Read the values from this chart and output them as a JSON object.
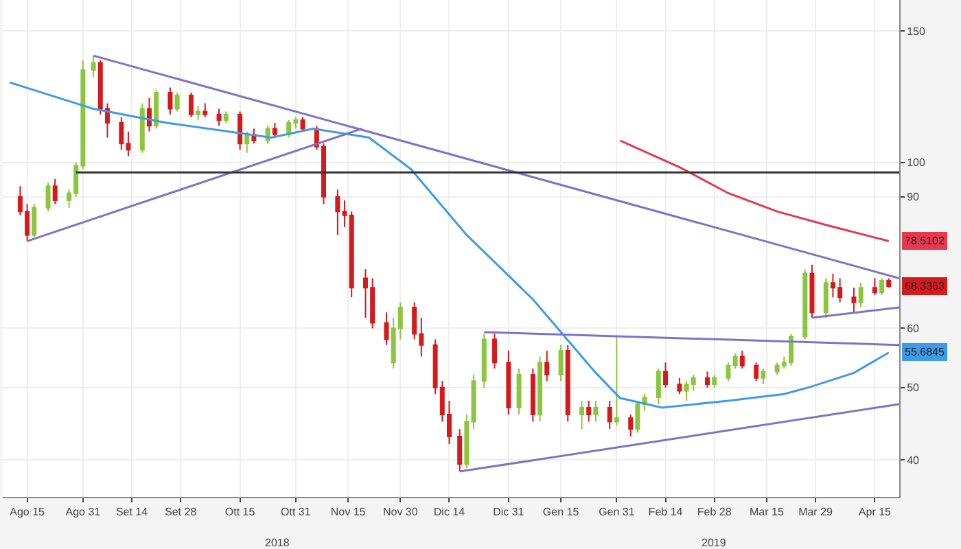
{
  "chart_data": {
    "type": "candlestick",
    "x": [
      "2018-08-13",
      "2018-08-15",
      "2018-08-17",
      "2018-08-21",
      "2018-08-23",
      "2018-08-27",
      "2018-08-29",
      "2018-08-31",
      "2018-09-03",
      "2018-09-05",
      "2018-09-07",
      "2018-09-11",
      "2018-09-13",
      "2018-09-17",
      "2018-09-19",
      "2018-09-21",
      "2018-09-25",
      "2018-09-27",
      "2018-10-01",
      "2018-10-03",
      "2018-10-05",
      "2018-10-09",
      "2018-10-11",
      "2018-10-15",
      "2018-10-17",
      "2018-10-19",
      "2018-10-23",
      "2018-10-25",
      "2018-10-29",
      "2018-10-31",
      "2018-11-02",
      "2018-11-06",
      "2018-11-08",
      "2018-11-12",
      "2018-11-14",
      "2018-11-16",
      "2018-11-20",
      "2018-11-22",
      "2018-11-26",
      "2018-11-28",
      "2018-11-30",
      "2018-12-04",
      "2018-12-06",
      "2018-12-10",
      "2018-12-12",
      "2018-12-14",
      "2018-12-17",
      "2018-12-19",
      "2018-12-21",
      "2018-12-24",
      "2018-12-27",
      "2018-12-31",
      "2019-01-03",
      "2019-01-07",
      "2019-01-09",
      "2019-01-11",
      "2019-01-15",
      "2019-01-17",
      "2019-01-21",
      "2019-01-23",
      "2019-01-25",
      "2019-01-29",
      "2019-01-31",
      "2019-02-04",
      "2019-02-06",
      "2019-02-08",
      "2019-02-12",
      "2019-02-14",
      "2019-02-18",
      "2019-02-20",
      "2019-02-22",
      "2019-02-26",
      "2019-02-28",
      "2019-03-04",
      "2019-03-06",
      "2019-03-08",
      "2019-03-12",
      "2019-03-14",
      "2019-03-18",
      "2019-03-20",
      "2019-03-22",
      "2019-03-26",
      "2019-03-28",
      "2019-04-01",
      "2019-04-03",
      "2019-04-05",
      "2019-04-09",
      "2019-04-11",
      "2019-04-15",
      "2019-04-17",
      "2019-04-19"
    ],
    "ohlc": [
      [
        90,
        93,
        85,
        86
      ],
      [
        86,
        88,
        78.5,
        80
      ],
      [
        80,
        88,
        79.5,
        87
      ],
      [
        87,
        94,
        86,
        93
      ],
      [
        93,
        95,
        88,
        89
      ],
      [
        89,
        92,
        87,
        91
      ],
      [
        91,
        100,
        90,
        99
      ],
      [
        99,
        137,
        98,
        133
      ],
      [
        133,
        139,
        130,
        136
      ],
      [
        136,
        137,
        116,
        118
      ],
      [
        118,
        120,
        108,
        113
      ],
      [
        113,
        115,
        104,
        106
      ],
      [
        106,
        110,
        102,
        104
      ],
      [
        104,
        120,
        103,
        118
      ],
      [
        118,
        122,
        110,
        112
      ],
      [
        112,
        125,
        111,
        124
      ],
      [
        124,
        126,
        116,
        118
      ],
      [
        118,
        124,
        117,
        123
      ],
      [
        123,
        124,
        115,
        116
      ],
      [
        116,
        119,
        114,
        117
      ],
      [
        117,
        120,
        115,
        116
      ],
      [
        116,
        118,
        112,
        114
      ],
      [
        114,
        117,
        113,
        116
      ],
      [
        116,
        117,
        104,
        106
      ],
      [
        106,
        110,
        103,
        109
      ],
      [
        109,
        111,
        106,
        107
      ],
      [
        107,
        112,
        106,
        111
      ],
      [
        111,
        113,
        108,
        109
      ],
      [
        109,
        114,
        108,
        113
      ],
      [
        113,
        115,
        111,
        114
      ],
      [
        114,
        115,
        110,
        111
      ],
      [
        111,
        112,
        104,
        105
      ],
      [
        105,
        106,
        88,
        90
      ],
      [
        90,
        92,
        80,
        86
      ],
      [
        86,
        89,
        82,
        85
      ],
      [
        85,
        86,
        66,
        68
      ],
      [
        70,
        72,
        62,
        68
      ],
      [
        68,
        70,
        60,
        61
      ],
      [
        61,
        63,
        57,
        58
      ],
      [
        54,
        62,
        53,
        60
      ],
      [
        60,
        65,
        58,
        64
      ],
      [
        64,
        65,
        58,
        59
      ],
      [
        59,
        62,
        55,
        57
      ],
      [
        57,
        58,
        49,
        50
      ],
      [
        50,
        51,
        45,
        46
      ],
      [
        46,
        48,
        42,
        43
      ],
      [
        43,
        44,
        38.6,
        39.5
      ],
      [
        39.5,
        46,
        39,
        45
      ],
      [
        45,
        52,
        44,
        51
      ],
      [
        51,
        59,
        50,
        58
      ],
      [
        58,
        59,
        53,
        54
      ],
      [
        54,
        56,
        46,
        47
      ],
      [
        47,
        53,
        46,
        52
      ],
      [
        52,
        53,
        45,
        46
      ],
      [
        46,
        55,
        45,
        54
      ],
      [
        54,
        56,
        51,
        52
      ],
      [
        52,
        57,
        51,
        56
      ],
      [
        56,
        57,
        45,
        46
      ],
      [
        46,
        48,
        44,
        47
      ],
      [
        47,
        48,
        45,
        46
      ],
      [
        46,
        48,
        45,
        47
      ],
      [
        47,
        48,
        44,
        45
      ],
      [
        45,
        58.5,
        44.5,
        45.5
      ],
      [
        45.5,
        46,
        43,
        44
      ],
      [
        44,
        48,
        43.5,
        47.5
      ],
      [
        47.5,
        49,
        46.5,
        48.5
      ],
      [
        48.5,
        53,
        47.5,
        52.5
      ],
      [
        52.5,
        54,
        50,
        50.5
      ],
      [
        50.5,
        51.5,
        49,
        49.5
      ],
      [
        49.5,
        51,
        48,
        50.5
      ],
      [
        50.5,
        52,
        49.5,
        51.5
      ],
      [
        51.5,
        52.5,
        50,
        50.5
      ],
      [
        50.5,
        52,
        50,
        51.5
      ],
      [
        51.5,
        54,
        51,
        53.5
      ],
      [
        53.5,
        55.5,
        53,
        55
      ],
      [
        55,
        56,
        53,
        53.5
      ],
      [
        53.5,
        54,
        51,
        51.5
      ],
      [
        51.5,
        53,
        50.5,
        52.5
      ],
      [
        52.5,
        54,
        52,
        53.5
      ],
      [
        53.5,
        55,
        53,
        54
      ],
      [
        54,
        59,
        53.5,
        58.5
      ],
      [
        58.5,
        72,
        58,
        71
      ],
      [
        71,
        73,
        62,
        63
      ],
      [
        63,
        70,
        62,
        69
      ],
      [
        69,
        71,
        66,
        68
      ],
      [
        68,
        70,
        65,
        66
      ],
      [
        66,
        68,
        63,
        65
      ],
      [
        65,
        69,
        64,
        68
      ],
      [
        68,
        70,
        66.5,
        67
      ],
      [
        67,
        70,
        66.5,
        69.5
      ],
      [
        69.5,
        70,
        68,
        68.3363
      ]
    ],
    "colors": [
      "#d7191c",
      "#d7191c",
      "#8cc63f",
      "#8cc63f",
      "#d7191c",
      "#8cc63f",
      "#8cc63f",
      "#8cc63f",
      "#8cc63f",
      "#d7191c",
      "#d7191c",
      "#d7191c",
      "#d7191c",
      "#8cc63f",
      "#d7191c",
      "#8cc63f",
      "#d7191c",
      "#8cc63f",
      "#d7191c",
      "#8cc63f",
      "#d7191c",
      "#d7191c",
      "#8cc63f",
      "#d7191c",
      "#8cc63f",
      "#d7191c",
      "#8cc63f",
      "#d7191c",
      "#8cc63f",
      "#8cc63f",
      "#d7191c",
      "#d7191c",
      "#d7191c",
      "#d7191c",
      "#d7191c",
      "#d7191c",
      "#d7191c",
      "#d7191c",
      "#d7191c",
      "#8cc63f",
      "#8cc63f",
      "#d7191c",
      "#d7191c",
      "#d7191c",
      "#d7191c",
      "#d7191c",
      "#d7191c",
      "#8cc63f",
      "#8cc63f",
      "#8cc63f",
      "#d7191c",
      "#d7191c",
      "#8cc63f",
      "#d7191c",
      "#8cc63f",
      "#d7191c",
      "#8cc63f",
      "#d7191c",
      "#8cc63f",
      "#d7191c",
      "#8cc63f",
      "#d7191c",
      "#8cc63f",
      "#d7191c",
      "#8cc63f",
      "#8cc63f",
      "#8cc63f",
      "#d7191c",
      "#d7191c",
      "#8cc63f",
      "#8cc63f",
      "#d7191c",
      "#8cc63f",
      "#8cc63f",
      "#8cc63f",
      "#d7191c",
      "#d7191c",
      "#8cc63f",
      "#8cc63f",
      "#8cc63f",
      "#8cc63f",
      "#8cc63f",
      "#d7191c",
      "#8cc63f",
      "#d7191c",
      "#d7191c",
      "#d7191c",
      "#8cc63f",
      "#d7191c",
      "#8cc63f",
      "#d7191c"
    ],
    "series": [
      {
        "type": "line",
        "color": "#3d9be9",
        "x": [
          "2018-08-10",
          "2018-09-03",
          "2018-09-24",
          "2018-10-24",
          "2018-11-05",
          "2018-11-21",
          "2018-12-03",
          "2018-12-19",
          "2019-01-07",
          "2019-01-25",
          "2019-02-01",
          "2019-02-13",
          "2019-03-04",
          "2019-03-20",
          "2019-03-27",
          "2019-04-09",
          "2019-04-19"
        ],
        "values": [
          128,
          118,
          113,
          108,
          111,
          108,
          98,
          80,
          65.6,
          52.3,
          48.4,
          47,
          48,
          49,
          50,
          52.3,
          55.6845
        ]
      },
      {
        "type": "line",
        "color": "#e8384f",
        "x": [
          "2019-02-01",
          "2019-02-18",
          "2019-03-04",
          "2019-03-18",
          "2019-04-01",
          "2019-04-19"
        ],
        "values": [
          107,
          98.6,
          91,
          86,
          82.5,
          78.5102
        ]
      },
      {
        "type": "line",
        "color": "#7d72c9",
        "x": [
          "2018-09-03",
          "2019-04-22"
        ],
        "values": [
          139,
          70
        ]
      },
      {
        "type": "line",
        "color": "#7d72c9",
        "x": [
          "2018-08-15",
          "2018-11-19"
        ],
        "values": [
          78.5,
          111
        ]
      },
      {
        "type": "line",
        "color": "#7d72c9",
        "x": [
          "2018-12-17",
          "2019-04-22"
        ],
        "values": [
          38.6,
          47.5
        ]
      },
      {
        "type": "line",
        "color": "#7d72c9",
        "x": [
          "2018-12-24",
          "2019-04-22"
        ],
        "values": [
          59.3,
          57
        ]
      },
      {
        "type": "line",
        "color": "#7d72c9",
        "x": [
          "2019-03-28",
          "2019-04-22"
        ],
        "values": [
          62,
          64
        ]
      },
      {
        "type": "line",
        "color": "#333333",
        "x": [
          "2018-08-29",
          "2019-04-22"
        ],
        "values": [
          97,
          97
        ]
      }
    ],
    "annotations": [
      {
        "text": "78.5102",
        "x": "2019-04-19",
        "y": 78.5102
      },
      {
        "text": "68.3363",
        "x": "2019-04-19",
        "y": 68.3363
      },
      {
        "text": "55.6845",
        "x": "2019-04-19",
        "y": 55.6845
      },
      "2018",
      "2019"
    ],
    "xlim": [
      "2018-08-08",
      "2019-04-22"
    ],
    "xticks": [
      {
        "value": "2018-08-15",
        "label": "Ago 15"
      },
      {
        "value": "2018-08-31",
        "label": "Ago 31"
      },
      {
        "value": "2018-09-14",
        "label": "Set 14"
      },
      {
        "value": "2018-09-28",
        "label": "Set 28"
      },
      {
        "value": "2018-10-15",
        "label": "Ott 15"
      },
      {
        "value": "2018-10-31",
        "label": "Ott 31"
      },
      {
        "value": "2018-11-15",
        "label": "Nov 15"
      },
      {
        "value": "2018-11-30",
        "label": "Nov 30"
      },
      {
        "value": "2018-12-14",
        "label": "Dic 14"
      },
      {
        "value": "2018-12-31",
        "label": "Dic 31"
      },
      {
        "value": "2019-01-15",
        "label": "Gen 15"
      },
      {
        "value": "2019-01-31",
        "label": "Gen 31"
      },
      {
        "value": "2019-02-14",
        "label": "Feb 14"
      },
      {
        "value": "2019-02-28",
        "label": "Feb 28"
      },
      {
        "value": "2019-03-15",
        "label": "Mar 15"
      },
      {
        "value": "2019-03-29",
        "label": "Mar 29"
      },
      {
        "value": "2019-04-15",
        "label": "Apr 15"
      }
    ],
    "ylim": [
      35.7,
      165
    ],
    "yticks": [
      40,
      50,
      60,
      90,
      100,
      150
    ],
    "log": true,
    "grid": true
  }
}
